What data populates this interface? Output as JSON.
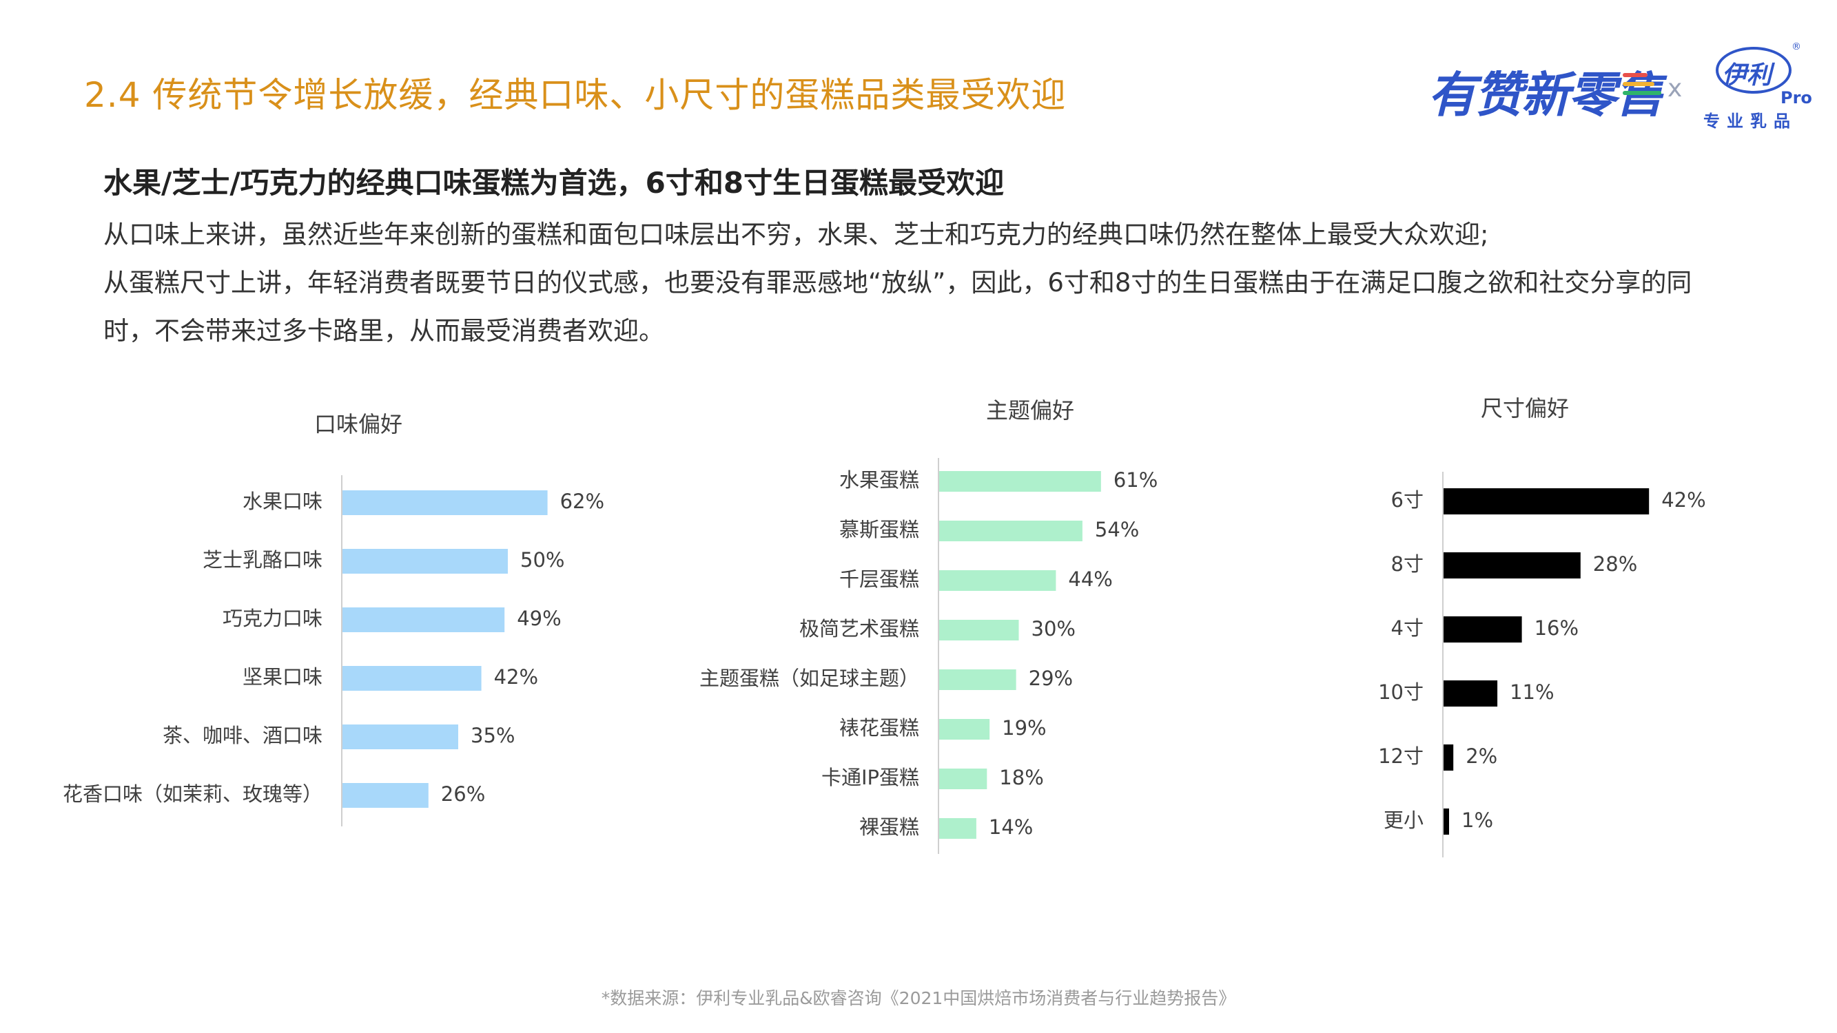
{
  "header": {
    "title": "2.4 传统节令增长放缓，经典口味、小尺寸的蛋糕品类最受欢迎",
    "brand_text": "有赞新零售",
    "cross": "x",
    "partner_name": "伊利",
    "partner_pro": "Pro",
    "partner_registered": "®",
    "partner_sub": "专业乳品"
  },
  "content": {
    "subtitle": "水果/芝士/巧克力的经典口味蛋糕为首选，6寸和8寸生日蛋糕最受欢迎",
    "para1": "从口味上来讲，虽然近些年来创新的蛋糕和面包口味层出不穷，水果、芝士和巧克力的经典口味仍然在整体上最受大众欢迎;",
    "para2": "从蛋糕尺寸上讲，年轻消费者既要节日的仪式感，也要没有罪恶感地“放纵”，因此，6寸和8寸的生日蛋糕由于在满足口腹之欲和社交分享的同",
    "para3": "时，不会带来过多卡路里，从而最受消费者欢迎。"
  },
  "colors": {
    "title": "#d9901a",
    "brand": "#2f55c8",
    "bar_flavor": "#a8d8fa",
    "bar_theme": "#aef0cc",
    "bar_size": "#000000",
    "axis": "#cfcfcf",
    "text": "#404040"
  },
  "chart_data": [
    {
      "type": "bar",
      "orientation": "horizontal",
      "title": "口味偏好",
      "categories": [
        "水果口味",
        "芝士乳酪口味",
        "巧克力口味",
        "坚果口味",
        "茶、咖啡、酒口味",
        "花香口味（如茉莉、玫瑰等）"
      ],
      "values": [
        62,
        50,
        49,
        42,
        35,
        26
      ],
      "value_labels": [
        "62%",
        "50%",
        "49%",
        "42%",
        "35%",
        "26%"
      ],
      "unit": "%",
      "xlim": [
        0,
        100
      ],
      "grid": false,
      "legend": "none"
    },
    {
      "type": "bar",
      "orientation": "horizontal",
      "title": "主题偏好",
      "categories": [
        "水果蛋糕",
        "慕斯蛋糕",
        "千层蛋糕",
        "极简艺术蛋糕",
        "主题蛋糕（如足球主题）",
        "裱花蛋糕",
        "卡通IP蛋糕",
        "裸蛋糕"
      ],
      "values": [
        61,
        54,
        44,
        30,
        29,
        19,
        18,
        14
      ],
      "value_labels": [
        "61%",
        "54%",
        "44%",
        "30%",
        "29%",
        "19%",
        "18%",
        "14%"
      ],
      "unit": "%",
      "xlim": [
        0,
        100
      ],
      "grid": false,
      "legend": "none"
    },
    {
      "type": "bar",
      "orientation": "horizontal",
      "title": "尺寸偏好",
      "categories": [
        "6寸",
        "8寸",
        "4寸",
        "10寸",
        "12寸",
        "更小"
      ],
      "values": [
        42,
        28,
        16,
        11,
        2,
        1
      ],
      "value_labels": [
        "42%",
        "28%",
        "16%",
        "11%",
        "2%",
        "1%"
      ],
      "unit": "%",
      "xlim": [
        0,
        100
      ],
      "grid": false,
      "legend": "none"
    }
  ],
  "footer": {
    "source": "*数据来源：伊利专业乳品&欧睿咨询《2021中国烘焙市场消费者与行业趋势报告》"
  }
}
